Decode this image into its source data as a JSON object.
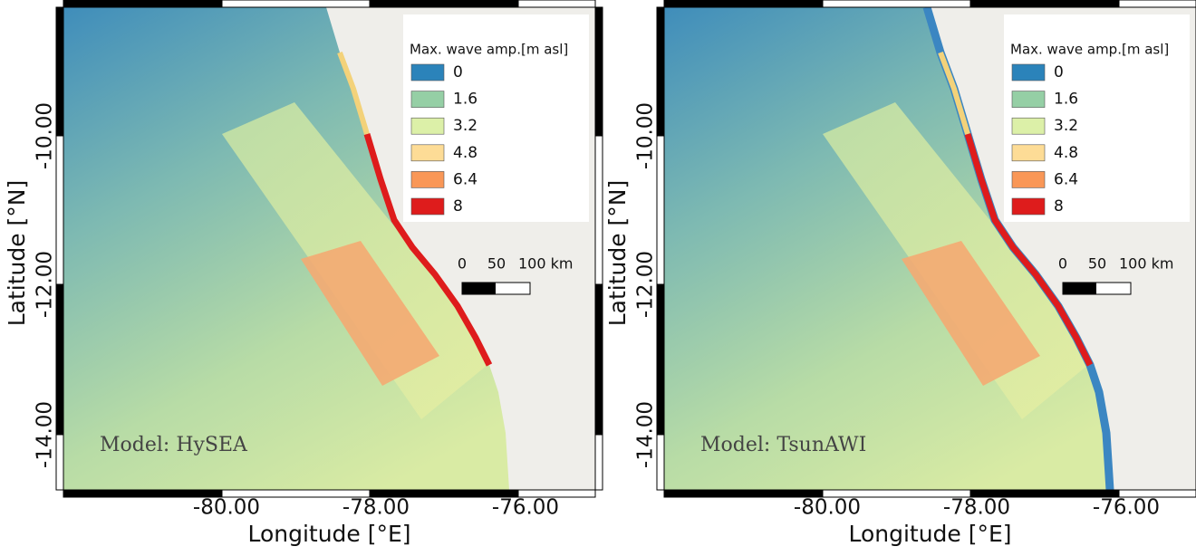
{
  "panels": [
    {
      "model_label": "Model: HySEA",
      "x_axis_label": "Longitude [°E]",
      "y_axis_label": "Latitude [°N]",
      "x_ticks": [
        "-80.00",
        "-78.00",
        "-76.00"
      ],
      "y_ticks": [
        "-10.00",
        "-12.00",
        "-14.00"
      ],
      "legend": {
        "title": "Max. wave amp.[m asl]",
        "items": [
          {
            "label": "0",
            "color": "#2b83ba"
          },
          {
            "label": "1.6",
            "color": "#95cfa5"
          },
          {
            "label": "3.2",
            "color": "#dcf0a8"
          },
          {
            "label": "4.8",
            "color": "#fddc96"
          },
          {
            "label": "6.4",
            "color": "#f99757"
          },
          {
            "label": "8",
            "color": "#de1c1c"
          }
        ]
      },
      "scale_bar": [
        "0",
        "50",
        "100 km"
      ]
    },
    {
      "model_label": "Model: TsunAWI",
      "x_axis_label": "Longitude [°E]",
      "y_axis_label": "Latitude [°N]",
      "x_ticks": [
        "-80.00",
        "-78.00",
        "-76.00"
      ],
      "y_ticks": [
        "-10.00",
        "-12.00",
        "-14.00"
      ],
      "legend": {
        "title": "Max. wave amp.[m asl]",
        "items": [
          {
            "label": "0",
            "color": "#2b83ba"
          },
          {
            "label": "1.6",
            "color": "#95cfa5"
          },
          {
            "label": "3.2",
            "color": "#dcf0a8"
          },
          {
            "label": "4.8",
            "color": "#fddc96"
          },
          {
            "label": "6.4",
            "color": "#f99757"
          },
          {
            "label": "8",
            "color": "#de1c1c"
          }
        ]
      },
      "scale_bar": [
        "0",
        "50",
        "100 km"
      ]
    }
  ]
}
